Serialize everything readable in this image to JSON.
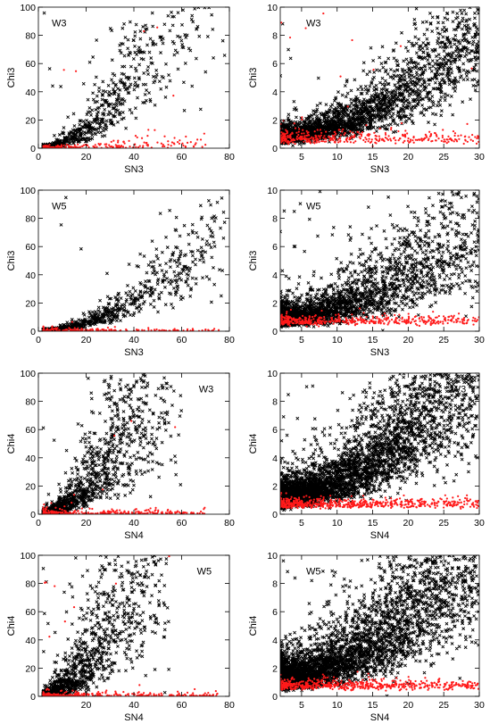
{
  "colors": {
    "detected": "#000000",
    "undetected": "#ff1a1a",
    "frame": "#000000",
    "background": "#ffffff"
  },
  "chart_data": [
    {
      "type": "scatter",
      "panel_tag": "W3",
      "xlabel": "SN3",
      "ylabel": "Chi3",
      "xlim": [
        0,
        80
      ],
      "ylim": [
        0,
        100
      ],
      "xticks": [
        "0",
        "20",
        "40",
        "60",
        "80"
      ],
      "yticks": [
        "0",
        "20",
        "40",
        "60",
        "80",
        "100"
      ],
      "series": [
        {
          "marker": "x",
          "color": "#000000",
          "trend": {
            "slope": 0.032,
            "power": 2.0,
            "intercept": 0.8,
            "scatter": 0.45,
            "n": 900,
            "xmin": 2,
            "xmax": 78,
            "xmode": "skew",
            "outlier_frac": 0.01
          }
        },
        {
          "marker": "dot",
          "color": "#ff1a1a",
          "trend": {
            "slope": 0.02,
            "power": 1.2,
            "intercept": 0.5,
            "scatter": 0.8,
            "n": 180,
            "xmin": 2,
            "xmax": 70,
            "xmode": "skew",
            "outlier_frac": 0.03
          }
        }
      ]
    },
    {
      "type": "scatter",
      "panel_tag": "W3",
      "xlabel": "SN3",
      "ylabel": "Chi3",
      "xlim": [
        2,
        30
      ],
      "ylim": [
        0,
        10
      ],
      "xticks": [
        "5",
        "10",
        "15",
        "20",
        "25",
        "30"
      ],
      "yticks": [
        "0",
        "2",
        "4",
        "6",
        "8",
        "10"
      ],
      "series": [
        {
          "marker": "x",
          "color": "#000000",
          "trend": {
            "slope": 0.0085,
            "power": 2.0,
            "intercept": 0.8,
            "scatter": 0.35,
            "n": 2600,
            "xmin": 2,
            "xmax": 30,
            "xmode": "skew",
            "outlier_frac": 0.01
          }
        },
        {
          "marker": "dot",
          "color": "#ff1a1a",
          "trend": {
            "slope": 0.0,
            "power": 1.0,
            "intercept": 0.7,
            "scatter": 0.35,
            "n": 400,
            "xmin": 2,
            "xmax": 30,
            "xmode": "skew",
            "outlier_frac": 0.03
          }
        }
      ]
    },
    {
      "type": "scatter",
      "panel_tag": "W5",
      "xlabel": "SN3",
      "ylabel": "Chi3",
      "xlim": [
        0,
        80
      ],
      "ylim": [
        0,
        100
      ],
      "xticks": [
        "0",
        "20",
        "40",
        "60",
        "80"
      ],
      "yticks": [
        "0",
        "20",
        "40",
        "60",
        "80",
        "100"
      ],
      "series": [
        {
          "marker": "x",
          "color": "#000000",
          "trend": {
            "slope": 0.013,
            "power": 2.0,
            "intercept": 0.8,
            "scatter": 0.35,
            "n": 750,
            "xmin": 2,
            "xmax": 78,
            "xmode": "skew",
            "outlier_frac": 0.01
          }
        },
        {
          "marker": "dot",
          "color": "#ff1a1a",
          "trend": {
            "slope": 0.0,
            "power": 1.0,
            "intercept": 0.7,
            "scatter": 0.8,
            "n": 160,
            "xmin": 2,
            "xmax": 76,
            "xmode": "skew",
            "outlier_frac": 0.0
          }
        }
      ]
    },
    {
      "type": "scatter",
      "panel_tag": "W5",
      "xlabel": "SN3",
      "ylabel": "Chi3",
      "xlim": [
        2,
        30
      ],
      "ylim": [
        0,
        10
      ],
      "xticks": [
        "5",
        "10",
        "15",
        "20",
        "25",
        "30"
      ],
      "yticks": [
        "0",
        "2",
        "4",
        "6",
        "8",
        "10"
      ],
      "series": [
        {
          "marker": "x",
          "color": "#000000",
          "trend": {
            "slope": 0.008,
            "power": 2.0,
            "intercept": 0.9,
            "scatter": 0.45,
            "n": 2400,
            "xmin": 2,
            "xmax": 30,
            "xmode": "skew",
            "outlier_frac": 0.01
          }
        },
        {
          "marker": "dot",
          "color": "#ff1a1a",
          "trend": {
            "slope": 0.0,
            "power": 1.0,
            "intercept": 0.75,
            "scatter": 0.25,
            "n": 450,
            "xmin": 2,
            "xmax": 30,
            "xmode": "skew",
            "outlier_frac": 0.0
          }
        }
      ]
    },
    {
      "type": "scatter",
      "panel_tag": "W3",
      "xlabel": "SN4",
      "ylabel": "Chi4",
      "xlim": [
        0,
        80
      ],
      "ylim": [
        0,
        100
      ],
      "xticks": [
        "0",
        "20",
        "40",
        "60",
        "80"
      ],
      "yticks": [
        "0",
        "20",
        "40",
        "60",
        "80",
        "100"
      ],
      "series": [
        {
          "marker": "x",
          "color": "#000000",
          "trend": {
            "slope": 0.045,
            "power": 2.0,
            "intercept": 0.8,
            "scatter": 0.6,
            "n": 1500,
            "xmin": 2,
            "xmax": 60,
            "xmode": "skew",
            "outlier_frac": 0.02
          }
        },
        {
          "marker": "dot",
          "color": "#ff1a1a",
          "trend": {
            "slope": 0.0,
            "power": 1.0,
            "intercept": 0.8,
            "scatter": 0.9,
            "n": 300,
            "xmin": 2,
            "xmax": 70,
            "xmode": "skew",
            "outlier_frac": 0.02
          }
        }
      ]
    },
    {
      "type": "scatter",
      "panel_tag": "W3",
      "xlabel": "SN4",
      "ylabel": "Chi4",
      "xlim": [
        2,
        30
      ],
      "ylim": [
        0,
        10
      ],
      "xticks": [
        "5",
        "10",
        "15",
        "20",
        "25",
        "30"
      ],
      "yticks": [
        "0",
        "2",
        "4",
        "6",
        "8",
        "10"
      ],
      "series": [
        {
          "marker": "x",
          "color": "#000000",
          "trend": {
            "slope": 0.012,
            "power": 2.0,
            "intercept": 1.2,
            "scatter": 0.4,
            "n": 4000,
            "xmin": 2,
            "xmax": 30,
            "xmode": "skew",
            "outlier_frac": 0.01
          }
        },
        {
          "marker": "dot",
          "color": "#ff1a1a",
          "trend": {
            "slope": 0.0,
            "power": 1.0,
            "intercept": 0.75,
            "scatter": 0.25,
            "n": 600,
            "xmin": 2,
            "xmax": 30,
            "xmode": "skew",
            "outlier_frac": 0.0
          }
        }
      ]
    },
    {
      "type": "scatter",
      "panel_tag": "W5",
      "xlabel": "SN4",
      "ylabel": "Chi4",
      "xlim": [
        0,
        80
      ],
      "ylim": [
        0,
        100
      ],
      "xticks": [
        "20",
        "40",
        "60",
        "80"
      ],
      "yticks": [
        "0",
        "20",
        "40",
        "60",
        "80",
        "100"
      ],
      "series": [
        {
          "marker": "x",
          "color": "#000000",
          "trend": {
            "slope": 0.06,
            "power": 2.0,
            "intercept": 0.8,
            "scatter": 0.7,
            "n": 1400,
            "xmin": 2,
            "xmax": 55,
            "xmode": "skew",
            "outlier_frac": 0.02
          }
        },
        {
          "marker": "dot",
          "color": "#ff1a1a",
          "trend": {
            "slope": 0.0,
            "power": 1.0,
            "intercept": 0.8,
            "scatter": 0.9,
            "n": 280,
            "xmin": 2,
            "xmax": 75,
            "xmode": "skew",
            "outlier_frac": 0.02
          }
        }
      ]
    },
    {
      "type": "scatter",
      "panel_tag": "W5",
      "xlabel": "SN4",
      "ylabel": "Chi4",
      "xlim": [
        2,
        30
      ],
      "ylim": [
        0,
        10
      ],
      "xticks": [
        "5",
        "10",
        "15",
        "20",
        "25",
        "30"
      ],
      "yticks": [
        "0",
        "2",
        "4",
        "6",
        "8",
        "10"
      ],
      "series": [
        {
          "marker": "x",
          "color": "#000000",
          "trend": {
            "slope": 0.012,
            "power": 2.0,
            "intercept": 1.2,
            "scatter": 0.45,
            "n": 4000,
            "xmin": 2,
            "xmax": 30,
            "xmode": "skew",
            "outlier_frac": 0.01
          }
        },
        {
          "marker": "dot",
          "color": "#ff1a1a",
          "trend": {
            "slope": 0.0,
            "power": 1.0,
            "intercept": 0.8,
            "scatter": 0.25,
            "n": 600,
            "xmin": 2,
            "xmax": 30,
            "xmode": "skew",
            "outlier_frac": 0.0
          }
        }
      ]
    }
  ]
}
